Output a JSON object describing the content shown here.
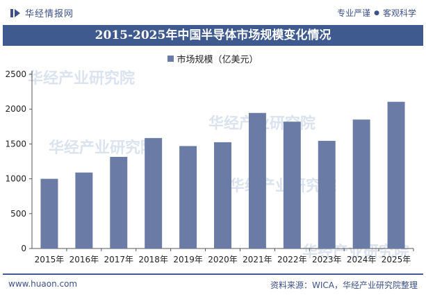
{
  "header": {
    "brand": "华经情报网",
    "slogan_left": "专业严谨",
    "slogan_dot": "●",
    "slogan_right": "客观科学"
  },
  "chart_title": "2015-2025年中国半导体市场规模变化情况",
  "footer": {
    "site": "www.huaon.com",
    "source": "资料来源：WICA，华经产业研究院整理"
  },
  "watermark": "华经产业研究院",
  "colors": {
    "bar": "#6a7ba5",
    "title_bg": "#3e5a8e",
    "accent": "#3d5087"
  },
  "chart_data": {
    "type": "bar",
    "title": "2015-2025年中国半导体市场规模变化情况",
    "categories": [
      "2015年",
      "2016年",
      "2017年",
      "2018年",
      "2019年",
      "2020年",
      "2021年",
      "2022年",
      "2023年",
      "2024年",
      "2025年"
    ],
    "series": [
      {
        "name": "市场规模（亿美元）",
        "values": [
          1000,
          1090,
          1315,
          1585,
          1470,
          1525,
          1945,
          1820,
          1545,
          1850,
          2105
        ]
      }
    ],
    "xlabel": "",
    "ylabel": "",
    "ylim": [
      0,
      2500
    ],
    "yticks": [
      "0",
      "500",
      "1000",
      "1500",
      "2000",
      "2500"
    ],
    "grid": false,
    "legend_position": "top-center"
  }
}
